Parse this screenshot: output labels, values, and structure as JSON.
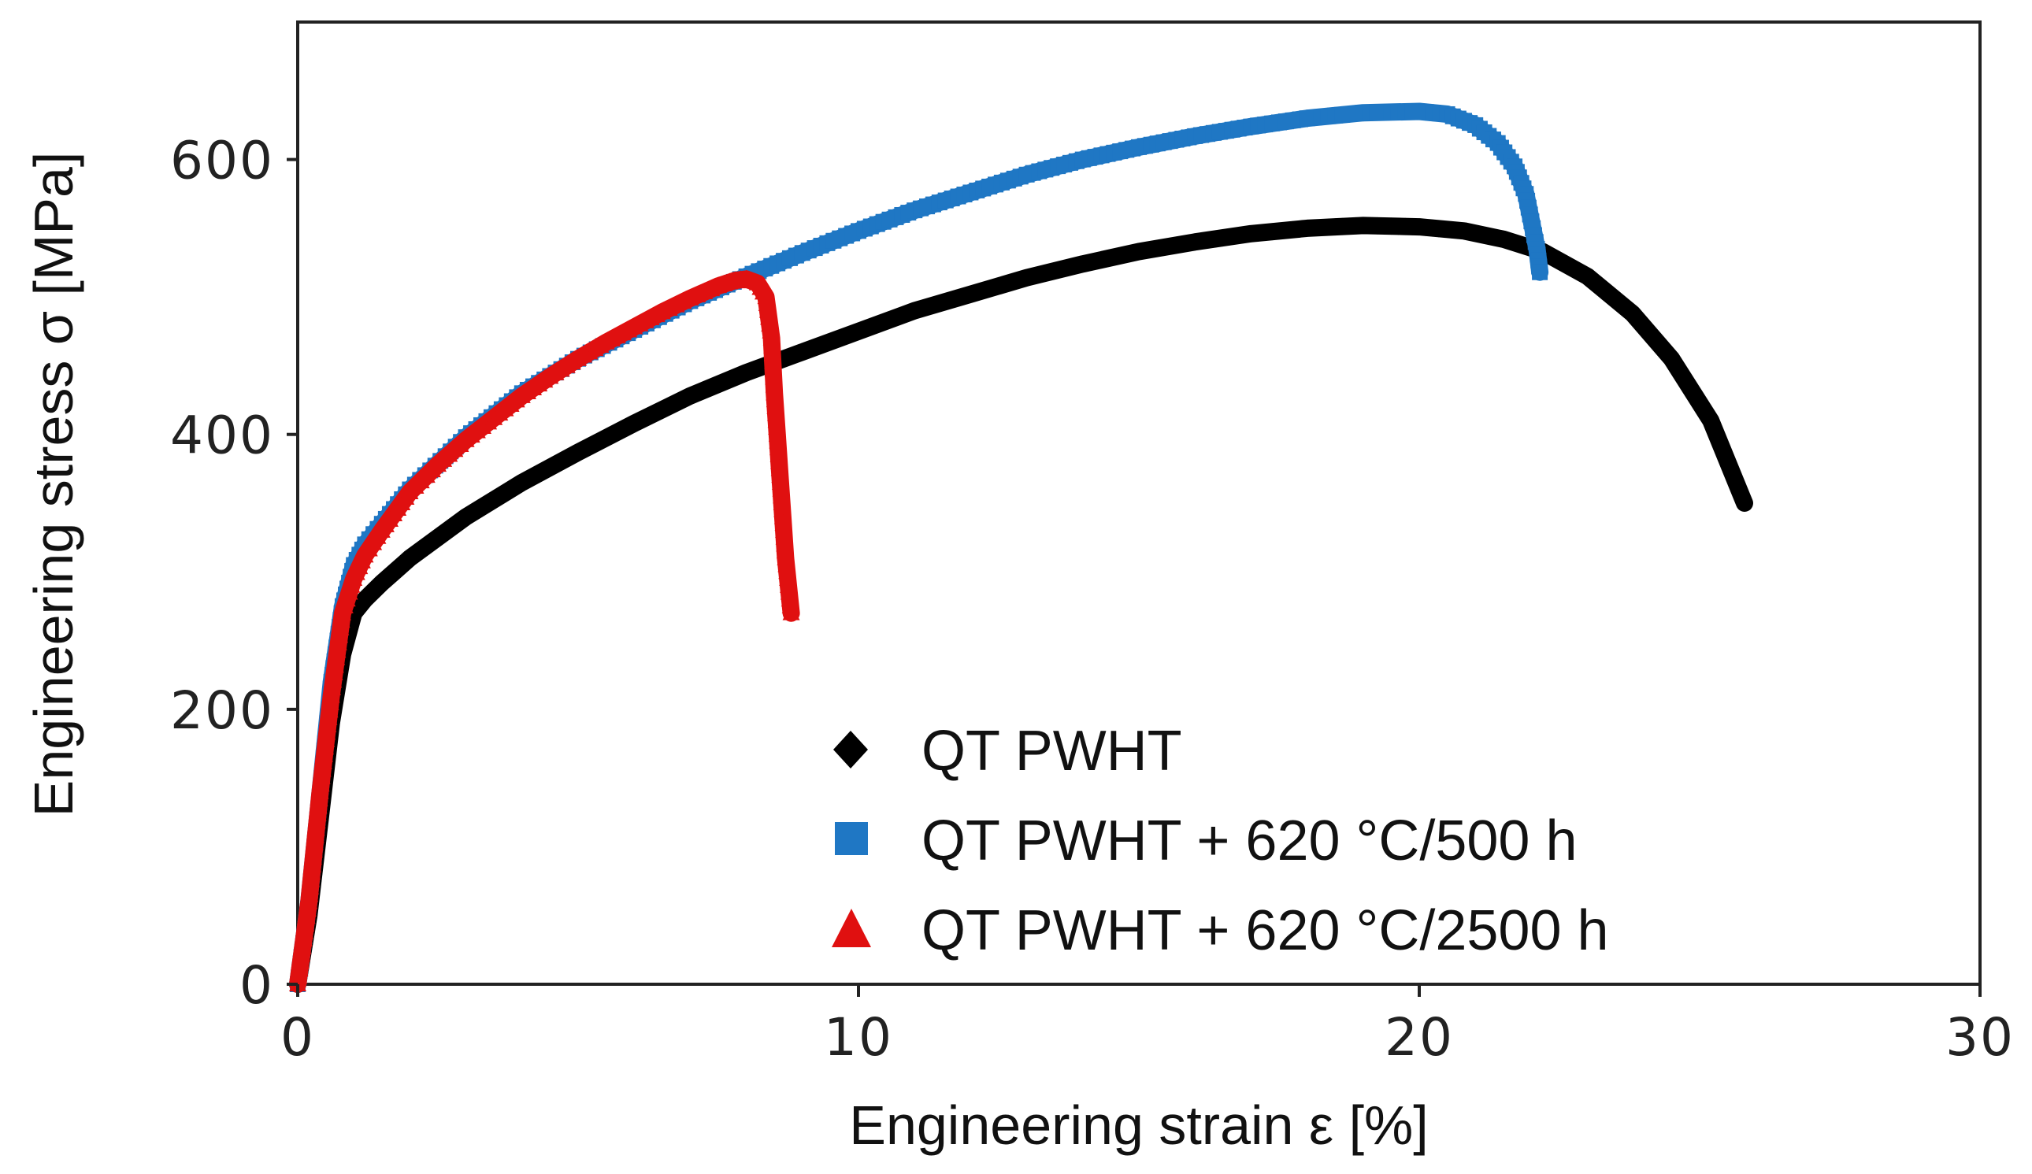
{
  "chart_data": {
    "type": "line",
    "title": "",
    "xlabel": "Engineering strain ε [%]",
    "ylabel": "Engineering stress σ [MPa]",
    "xlim": [
      0,
      30
    ],
    "ylim": [
      0,
      700
    ],
    "xticks": [
      0,
      10,
      20,
      30
    ],
    "yticks": [
      0,
      200,
      400,
      600
    ],
    "xtick_labels": [
      "0",
      "10",
      "20",
      "30"
    ],
    "ytick_labels": [
      "0",
      "200",
      "400",
      "600"
    ],
    "grid": false,
    "legend_position": "bottom-center",
    "series": [
      {
        "name": "QT PWHT",
        "color": "#000000",
        "marker": "diamond",
        "x": [
          0,
          0.2,
          0.4,
          0.6,
          0.8,
          1.0,
          1.2,
          1.5,
          2,
          3,
          4,
          5,
          6,
          7,
          8,
          9,
          10,
          11,
          12,
          13,
          14,
          15,
          16,
          17,
          18,
          19,
          20,
          20.8,
          21.5,
          22.2,
          23,
          23.8,
          24.5,
          25.2,
          25.8
        ],
        "y": [
          0,
          50,
          120,
          190,
          240,
          270,
          280,
          292,
          310,
          340,
          365,
          387,
          408,
          428,
          445,
          460,
          475,
          490,
          502,
          514,
          524,
          533,
          540,
          546,
          550,
          552,
          551,
          548,
          542,
          533,
          515,
          488,
          455,
          410,
          350
        ]
      },
      {
        "name": "QT PWHT + 620 °C/500 h",
        "color": "#1f77c4",
        "marker": "square",
        "x": [
          0,
          0.2,
          0.4,
          0.6,
          0.8,
          1.0,
          1.2,
          1.5,
          2,
          3,
          4,
          5,
          6,
          7,
          8,
          9,
          10,
          11,
          12,
          13,
          14,
          15,
          16,
          17,
          18,
          19,
          20,
          20.5,
          21,
          21.4,
          21.7,
          21.9,
          22.0,
          22.1,
          22.15
        ],
        "y": [
          0,
          60,
          140,
          220,
          275,
          305,
          320,
          335,
          360,
          398,
          430,
          455,
          476,
          497,
          515,
          532,
          548,
          563,
          576,
          589,
          600,
          609,
          617,
          624,
          630,
          634,
          635,
          633,
          625,
          612,
          595,
          575,
          555,
          535,
          518
        ]
      },
      {
        "name": "QT PWHT + 620 °C/2500 h",
        "color": "#e01010",
        "marker": "triangle",
        "x": [
          0,
          0.2,
          0.4,
          0.6,
          0.8,
          1.0,
          1.2,
          1.5,
          2,
          2.5,
          3,
          3.5,
          4,
          4.5,
          5,
          5.5,
          6,
          6.5,
          7,
          7.5,
          7.8,
          8.0,
          8.2,
          8.35,
          8.45,
          8.5,
          8.55,
          8.6,
          8.65,
          8.7,
          8.75,
          8.8
        ],
        "y": [
          0,
          60,
          140,
          210,
          270,
          295,
          312,
          330,
          358,
          378,
          396,
          412,
          428,
          442,
          455,
          467,
          478,
          489,
          499,
          508,
          512,
          513,
          510,
          500,
          470,
          430,
          400,
          370,
          340,
          310,
          290,
          270
        ]
      }
    ]
  }
}
